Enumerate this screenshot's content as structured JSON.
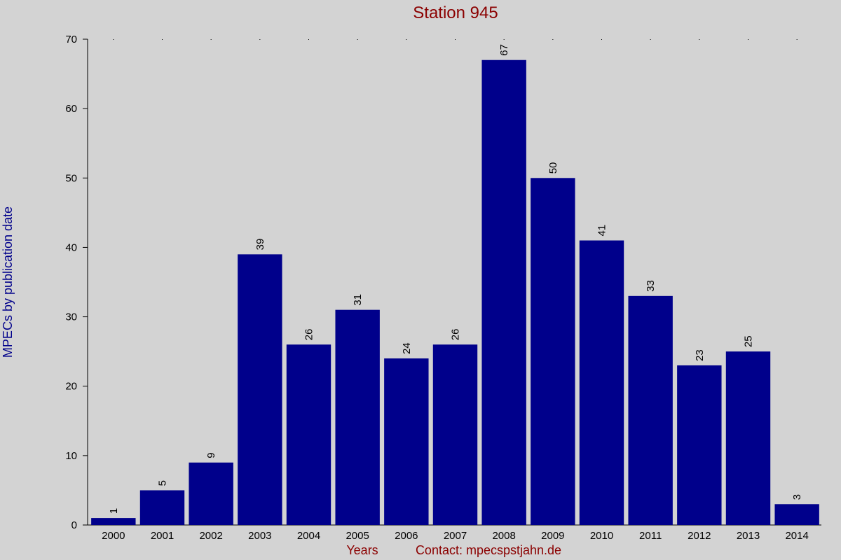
{
  "chart_data": {
    "type": "bar",
    "title": "Station 945",
    "y_label": "MPECs by publication date",
    "x_label": "Years",
    "contact": "Contact: mpecspstjahn.de",
    "categories": [
      "2000",
      "2001",
      "2002",
      "2003",
      "2004",
      "2005",
      "2006",
      "2007",
      "2008",
      "2009",
      "2010",
      "2011",
      "2012",
      "2013",
      "2014"
    ],
    "values": [
      1,
      5,
      9,
      39,
      26,
      31,
      24,
      26,
      67,
      50,
      41,
      33,
      23,
      25,
      3
    ],
    "color": "#00008b",
    "ylim": [
      0,
      70
    ],
    "yticks": [
      0,
      10,
      20,
      30,
      40,
      50,
      60,
      70
    ]
  }
}
